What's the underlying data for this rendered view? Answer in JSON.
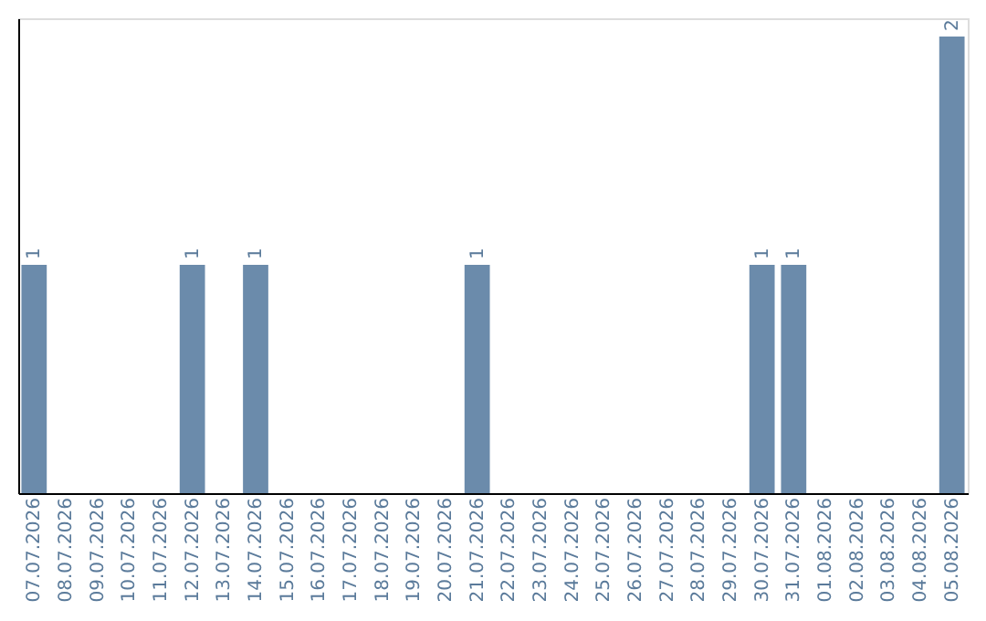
{
  "chart_data": {
    "type": "bar",
    "categories": [
      "07.07.2026",
      "08.07.2026",
      "09.07.2026",
      "10.07.2026",
      "11.07.2026",
      "12.07.2026",
      "13.07.2026",
      "14.07.2026",
      "15.07.2026",
      "16.07.2026",
      "17.07.2026",
      "18.07.2026",
      "19.07.2026",
      "20.07.2026",
      "21.07.2026",
      "22.07.2026",
      "23.07.2026",
      "24.07.2026",
      "25.07.2026",
      "26.07.2026",
      "27.07.2026",
      "28.07.2026",
      "29.07.2026",
      "30.07.2026",
      "31.07.2026",
      "01.08.2026",
      "02.08.2026",
      "03.08.2026",
      "04.08.2026",
      "05.08.2026"
    ],
    "values": [
      1,
      0,
      0,
      0,
      0,
      1,
      0,
      1,
      0,
      0,
      0,
      0,
      0,
      0,
      1,
      0,
      0,
      0,
      0,
      0,
      0,
      0,
      0,
      1,
      1,
      0,
      0,
      0,
      0,
      2
    ],
    "value_labels": [
      "1",
      null,
      null,
      null,
      null,
      "1",
      null,
      "1",
      null,
      null,
      null,
      null,
      null,
      null,
      "1",
      null,
      null,
      null,
      null,
      null,
      null,
      null,
      null,
      "1",
      "1",
      null,
      null,
      null,
      null,
      "2"
    ],
    "color": "#6b8bab",
    "ylim": [
      0,
      2.08
    ],
    "tick_labels": "x",
    "grid": false
  }
}
